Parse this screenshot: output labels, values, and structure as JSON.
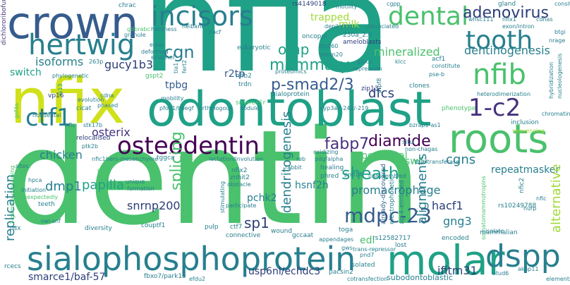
{
  "palette": {
    "dark_navy": "#2b3d78",
    "blue": "#365c8d",
    "teal_dark": "#277f8e",
    "teal": "#1fa187",
    "green": "#4ac16d",
    "lime": "#a0da39",
    "yellow_green": "#d0e11c",
    "purple": "#46327e",
    "deep_purple": "#440154"
  },
  "words": {
    "nfia": "nfia",
    "dentin": "dentin",
    "nfix": "nfix",
    "odontoblast": "odontoblast",
    "crown": "crown",
    "molar": "molar",
    "roots": "roots",
    "sialophosphoprotein": "sialophosphoprotein",
    "hertwig": "hertwig",
    "incisors": "incisors",
    "dental": "dental",
    "tooth": "tooth",
    "nfib": "nfib",
    "dspp": "dspp",
    "osteodentin": "osteodentin",
    "ctf1": "ctf1",
    "1-c2": "1-c2",
    "adenovirus": "adenovirus",
    "cgn": "cgn",
    "mdpc-23": "mdpc-23",
    "diamide": "diamide",
    "sheath": "sheath",
    "p-smad2/3": "p-smad2/3",
    "fabp7": "fabp7",
    "mammary": "mammary",
    "splicing": "splicing",
    "omp": "omp",
    "dentinogenesis": "dentinogenesis",
    "mineralized": "mineralized",
    "dfcs": "dfcs",
    "alternative": "alternative",
    "isoforms": "isoforms",
    "replication": "replication",
    "dendritogenesis": "dendritogenesis",
    "alignments": "alignments",
    "papilla": "papilla",
    "osterix": "osterix",
    "sp1": "sp1",
    "chicken": "chicken",
    "postnatal": "postnatal",
    "dmp1": "dmp1",
    "promacrophage": "promacrophage",
    "cgns": "cgns",
    "hacf1": "hacf1",
    "gng3": "gng3",
    "smarce1/baf-57": "smarce1/baf-57",
    "ifitm31": "ifitm31",
    "usp6nl/echdc3": "usp6nl/echdc3",
    "snrnp200": "snrnp200",
    "gucy1b3": "gucy1b3",
    "tpbg": "tpbg",
    "switch": "switch",
    "trapped": "trapped",
    "milk": "milk",
    "hsnf2h": "hsnf2h",
    "pchk2": "pchk2",
    "repeatmasker": "repeatmasker",
    "dichlororibofuranosylbenzimidazole": "dichlororibofuranosylbenzimidazole",
    "rs4149018": "rs4149018",
    "sw6": "sw6",
    "edi": "edi",
    "r2tp": "r2tp",
    "ameloblasts": "ameloblasts",
    "230a_2.0": "230a_2.0",
    "eukaryotic": "eukaryotic",
    "oncoppi": "oncoppi",
    "enamel": "enamel",
    "fbxo7/park15": "fbxo7/park15",
    "subodontoblastic": "subodontoblastic",
    "cotransfection": "cotransfection",
    "pacsin2": "pacsin2",
    "isolated": "isolated",
    "gccaat": "gccaat",
    "connective": "connective",
    "wound": "wound",
    "toga": "toga",
    "pulp": "pulp",
    "ctf7": "ctf7",
    "rs12582717": "rs12582717",
    "encoded": "encoded",
    "mammalian": "mammalian",
    "rs10249788": "rs10249788",
    "nfic2": "nfic2",
    "hurp": "hurp",
    "nfic": "nfic",
    "nfixa": "nfixa",
    "nfic1": "nfic1",
    "nfix2": "nfix2",
    "znhit2": "znhit2",
    "obstacle": "obstacle",
    "participate": "participate",
    "stimulating": "stimulating",
    "couptf1": "couptf1",
    "diversity": "diversity",
    "formation": "formation",
    "unique": "unique",
    "hpca": "hpca",
    "teeth": "teeth",
    "unexpectedly": "unexpectedly",
    "initiation": "initiation",
    "osx": "osx",
    "rcecs": "rcecs",
    "healing": "healing",
    "phred": "phred",
    "rabbit": "rabbit",
    "reb": "reb",
    "lactation/involution": "lactation/involution",
    "hers-mesenchyme": "hers-mesenchyme",
    "tggca": "tggca",
    "relocalised": "relocalised",
    "ptk2b": "ptk2b",
    "stk17b": "stk17b",
    "nflc": "nflc",
    "sites": "sites",
    "nondental": "nondental",
    "gsf4a": "gsf4a",
    "cicat": "cicat",
    "phased": "phased",
    "cdna": "cdna",
    "evolution": "evolution",
    "vp16": "vp16",
    "phylogenetic": "phylogenetic",
    "263p": "263p",
    "granule": "granule",
    "hardness": "hardness",
    "neibank": "neibank",
    "hacf": "hacf",
    "chrac": "chrac",
    "gdbrabc": "gdbrabc",
    "ester": "ester",
    "deformed": "deformed",
    "gspt2": "gspt2",
    "fert2": "fert2",
    "tia1": "tia1",
    "nfib2": "nfib2",
    "trdn": "trdn",
    "proteomics": "proteomics",
    "sialoprotein": "sialoprotein",
    "smarce1r": "smarce1r",
    "mobility": "mobility",
    "pfon1/hbegf": "pfon1/hbegf",
    "orthologous": "orthologous",
    "nodule": "nodule",
    "cyp3a7-242/-219": "cyp3a7-242/-219",
    "bzrap1-as1": "bzrap1-as1",
    "situ": "situ",
    "non-chagas": "non-chagas",
    "pdgfalpha": "pdgfalpha",
    "oxidizing": "oxidizing",
    "thioltransferase": "thioltransferase",
    "pnd14": "pnd14",
    "unassembled": "unassembled",
    "already-discovered": "already-discovered",
    "electrophoretic": "electrophoretic",
    "ap-4-enriched": "ap-4-enriched",
    "appendages": "appendages",
    "trans-repressor": "trans-repressor",
    "lost": "lost",
    "gws": "gws",
    "somatomammotropins": "somatomammotropins",
    "zfp260": "zfp260",
    "tomm20": "tomm20",
    "motility": "motility",
    "depilation": "depilation",
    "dissociated": "dissociated",
    "gh/cs": "gh/cs",
    "klcc": "klcc",
    "repression": "repression",
    "zip13": "zip13",
    "prpf8": "prpf8",
    "clones": "clones",
    "pse-b": "pse-b",
    "acf1": "acf1",
    "constitute": "constitute",
    "gland": "gland",
    "whsc111": "whsc111",
    "nfix1": "nfix1",
    "exon/intron": "exon/intron",
    "cdnas": "cdnas",
    "consite": "consite",
    "btgi": "btgi",
    "nrage": "nrage",
    "heterodimerization": "heterodimerization",
    "nucleologenesis": "nucleologenesis",
    "hybridization": "hybridization",
    "chromatin": "chromatin",
    "inclusion": "inclusion",
    "phenotype": "phenotype",
    "sequencing": "sequencing",
    "elements": "elements",
    "akap11": "akap11",
    "otud6": "otud6",
    "otud4": "otud4",
    "isolate": "isolate",
    "pnd7": "pnd7",
    "3-gamma-containing": "3-gamma-containing",
    "swi-snf": "swi-snf",
    "efdu2": "efdu2",
    "cgpp": "cgpp",
    "rs13": "rs13",
    "alternative_small": "transcription",
    "rapid": "rapid"
  }
}
